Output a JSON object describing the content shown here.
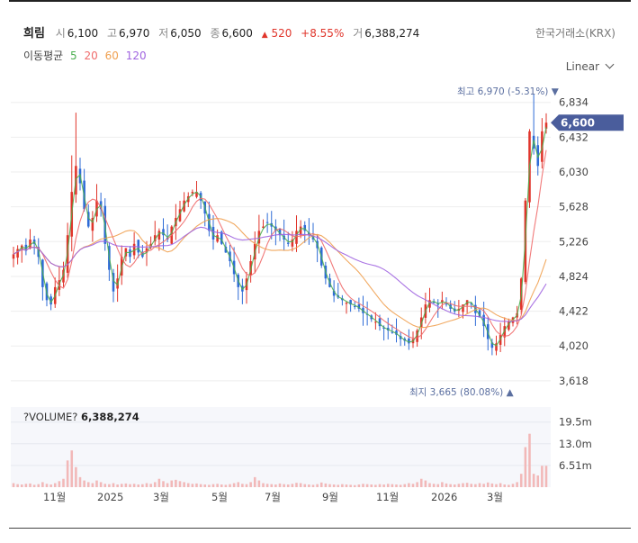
{
  "header": {
    "name": "희림",
    "open_label": "시",
    "open": "6,100",
    "high_label": "고",
    "high": "6,970",
    "low_label": "저",
    "low": "6,050",
    "close_label": "종",
    "close": "6,600",
    "change_arrow": "▲",
    "change": "520",
    "change_pct": "+8.55%",
    "volume_label": "거",
    "volume": "6,388,274",
    "exchange": "한국거래소(KRX)"
  },
  "ma_legend": {
    "label": "이동평균",
    "periods": [
      "5",
      "20",
      "60",
      "120"
    ],
    "colors": [
      "#4caf50",
      "#f06b6b",
      "#f0a050",
      "#a064e0"
    ]
  },
  "scale_selector": {
    "value": "Linear"
  },
  "colors": {
    "up": "#e0352b",
    "down": "#2e6bd6",
    "price_tag": "#4a5d9c",
    "volume_bar": "#f2b8b8"
  },
  "chart_data": {
    "type": "candlestick",
    "y_ticks": [
      "6,834",
      "6,432",
      "6,030",
      "5,628",
      "5,226",
      "4,824",
      "4,422",
      "4,020",
      "3,618"
    ],
    "y_tick_values": [
      6834,
      6432,
      6030,
      5628,
      5226,
      4824,
      4422,
      4020,
      3618
    ],
    "ylim": [
      3440,
      7060
    ],
    "x_ticks": [
      "11월",
      "2025",
      "3월",
      "5월",
      "7월",
      "9월",
      "11월",
      "2026",
      "3월"
    ],
    "current_price": "6,600",
    "annotations": {
      "high": {
        "label": "최고",
        "value": "6,970",
        "pct": "(-5.31%)",
        "marker": "▼"
      },
      "low": {
        "label": "최지",
        "value": "3,665",
        "pct": "(80.08%)",
        "marker": "▲"
      }
    },
    "volume": {
      "title": "?VOLUME?",
      "value": "6,388,274",
      "y_ticks": [
        "19.5m",
        "13.0m",
        "6.51m"
      ],
      "y_tick_values": [
        19.5,
        13.0,
        6.51
      ],
      "ylim": [
        0,
        24
      ]
    },
    "closes": [
      5080,
      5140,
      5180,
      5120,
      5250,
      5200,
      5050,
      4700,
      4550,
      4500,
      4700,
      4780,
      4900,
      5300,
      5800,
      6100,
      5900,
      5600,
      5400,
      5500,
      5700,
      5600,
      5200,
      4900,
      4650,
      4800,
      5050,
      5150,
      5050,
      5200,
      5100,
      5050,
      5150,
      5200,
      5300,
      5350,
      5300,
      5250,
      5400,
      5500,
      5600,
      5700,
      5750,
      5800,
      5800,
      5700,
      5550,
      5350,
      5250,
      5300,
      5200,
      5100,
      5000,
      4850,
      4700,
      4650,
      4800,
      5000,
      5200,
      5350,
      5400,
      5450,
      5400,
      5350,
      5300,
      5250,
      5200,
      5250,
      5350,
      5400,
      5350,
      5300,
      5250,
      5150,
      4950,
      4800,
      4700,
      4600,
      4580,
      4550,
      4520,
      4500,
      4480,
      4450,
      4400,
      4380,
      4330,
      4300,
      4250,
      4220,
      4200,
      4180,
      4150,
      4100,
      4080,
      4050,
      4100,
      4200,
      4350,
      4500,
      4550,
      4520,
      4500,
      4550,
      4500,
      4450,
      4420,
      4450,
      4500,
      4550,
      4500,
      4400,
      4350,
      4250,
      4100,
      4000,
      4050,
      4150,
      4250,
      4300,
      4350,
      4400,
      4800,
      5700,
      6500,
      6300,
      6100,
      6500,
      6600
    ],
    "volumes_m": [
      1.2,
      0.9,
      0.8,
      1.0,
      1.1,
      0.7,
      0.9,
      1.5,
      1.0,
      0.8,
      1.2,
      1.8,
      2.5,
      8.0,
      11.0,
      6.0,
      3.0,
      2.0,
      1.5,
      1.2,
      2.0,
      1.5,
      1.0,
      0.9,
      1.2,
      0.8,
      1.0,
      1.1,
      0.9,
      1.0,
      0.8,
      0.9,
      1.2,
      1.0,
      1.5,
      2.5,
      1.8,
      1.2,
      2.0,
      2.2,
      1.8,
      1.5,
      1.2,
      1.0,
      1.1,
      0.9,
      0.8,
      0.7,
      0.9,
      1.0,
      0.8,
      0.7,
      0.9,
      1.2,
      1.5,
      1.0,
      0.9,
      1.5,
      3.0,
      2.0,
      1.2,
      1.0,
      0.9,
      0.8,
      1.1,
      0.9,
      0.8,
      1.0,
      1.3,
      1.2,
      0.9,
      0.8,
      0.7,
      0.9,
      1.4,
      1.1,
      0.9,
      0.8,
      0.7,
      0.9,
      0.8,
      0.7,
      0.6,
      0.8,
      1.0,
      0.9,
      0.8,
      0.7,
      0.9,
      0.8,
      1.0,
      0.9,
      0.8,
      0.7,
      0.9,
      1.2,
      1.0,
      1.5,
      2.5,
      2.0,
      1.2,
      1.0,
      0.9,
      1.5,
      1.1,
      0.9,
      0.8,
      1.0,
      1.2,
      1.3,
      1.0,
      0.9,
      1.2,
      1.0,
      1.4,
      1.1,
      0.9,
      1.2,
      0.8,
      0.7,
      1.0,
      1.5,
      4.0,
      12.0,
      16.0,
      4.0,
      3.5,
      6.4,
      6.4
    ]
  }
}
